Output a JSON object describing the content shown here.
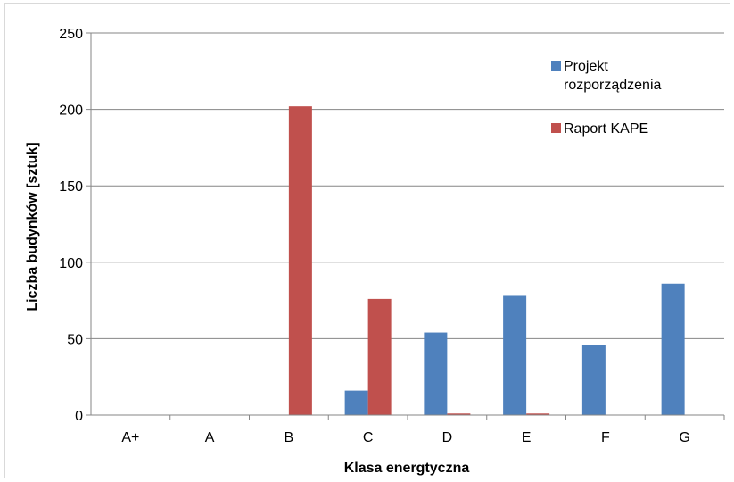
{
  "chart_data": {
    "type": "bar",
    "title": "",
    "xlabel": "Klasa energtyczna",
    "ylabel": "Liczba budynków [sztuk]",
    "categories": [
      "A+",
      "A",
      "B",
      "C",
      "D",
      "E",
      "F",
      "G"
    ],
    "series": [
      {
        "name": "Projekt rozporządzenia",
        "legend_lines": [
          "Projekt",
          "rozporządzenia"
        ],
        "color": "#4f81bd",
        "values": [
          0,
          0,
          0,
          16,
          54,
          78,
          46,
          86
        ]
      },
      {
        "name": "Raport KAPE",
        "legend_lines": [
          "Raport KAPE"
        ],
        "color": "#c0504d",
        "values": [
          0,
          0,
          202,
          76,
          1,
          1,
          0,
          0
        ]
      }
    ],
    "ylim": [
      0,
      250
    ],
    "yticks": [
      "0",
      "50",
      "100",
      "150",
      "200",
      "250"
    ],
    "grid": true,
    "legend_position": "top-right"
  }
}
